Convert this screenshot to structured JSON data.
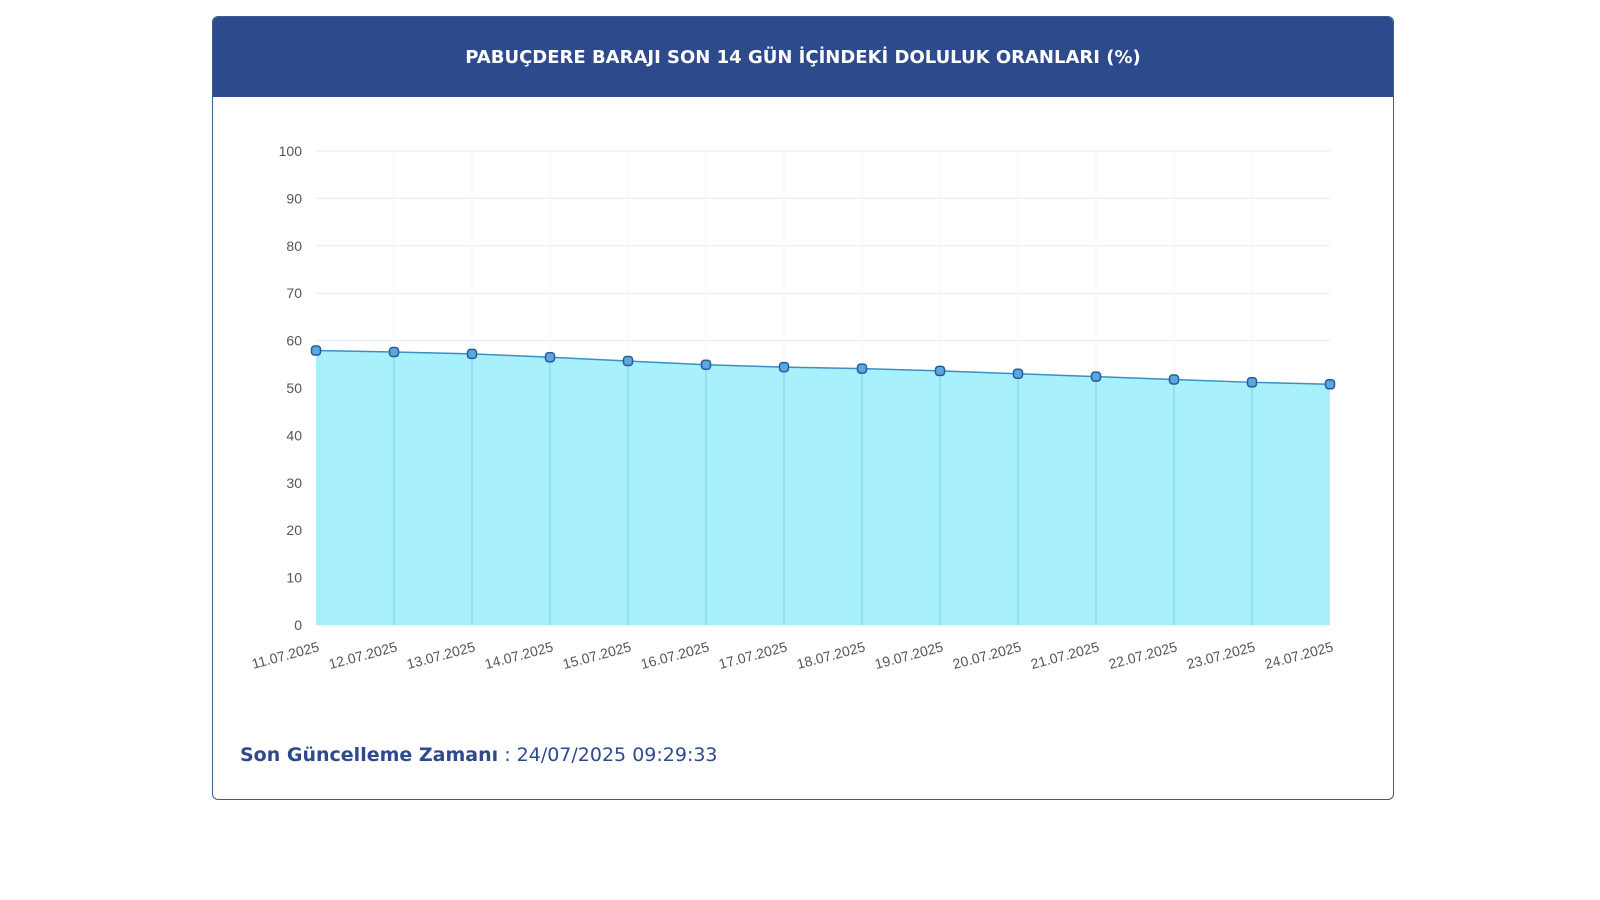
{
  "card": {
    "title": "PABUÇDERE BARAJI SON 14 GÜN İÇİNDEKİ DOLULUK ORANLARI (%)"
  },
  "footer": {
    "label": "Son Güncelleme Zamanı",
    "separator": " : ",
    "value": "24/07/2025 09:29:33"
  },
  "colors": {
    "header_bg": "#2c4a8c",
    "area_fill": "#a8f0fc",
    "line": "#3a8fc4",
    "marker_fill": "#5aa8e0",
    "marker_stroke": "#2a5a9a",
    "grid": "#e4ecf2",
    "vertical_grid": "#7fcde6",
    "tick_text": "#555555",
    "footer_text": "#2c4a8c"
  },
  "chart_data": {
    "type": "area",
    "categories": [
      "11.07.2025",
      "12.07.2025",
      "13.07.2025",
      "14.07.2025",
      "15.07.2025",
      "16.07.2025",
      "17.07.2025",
      "18.07.2025",
      "19.07.2025",
      "20.07.2025",
      "21.07.2025",
      "22.07.2025",
      "23.07.2025",
      "24.07.2025"
    ],
    "series": [
      {
        "values": [
          57.9,
          57.6,
          57.2,
          56.5,
          55.7,
          54.9,
          54.4,
          54.1,
          53.6,
          53.0,
          52.4,
          51.8,
          51.2,
          50.8
        ]
      }
    ],
    "yticks": [
      0,
      10,
      20,
      30,
      40,
      50,
      60,
      70,
      80,
      90,
      100
    ],
    "ylim": [
      0,
      100
    ],
    "grid": true,
    "title": "PABUÇDERE BARAJI SON 14 GÜN İÇİNDEKİ DOLULUK ORANLARI (%)",
    "xlabel": "",
    "ylabel": ""
  }
}
